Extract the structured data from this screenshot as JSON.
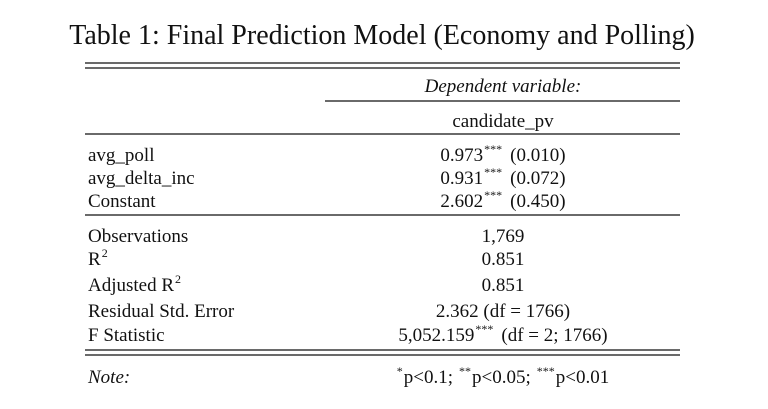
{
  "title": "Table 1: Final Prediction Model (Economy and Polling)",
  "header": {
    "dependent_label": "Dependent variable:",
    "dependent_variable": "candidate_pv"
  },
  "coefficients": [
    {
      "name": "avg_poll",
      "estimate": "0.973",
      "stars": "***",
      "se": "(0.010)"
    },
    {
      "name": "avg_delta_inc",
      "estimate": "0.931",
      "stars": "***",
      "se": "(0.072)"
    },
    {
      "name": "Constant",
      "estimate": "2.602",
      "stars": "***",
      "se": "(0.450)"
    }
  ],
  "statistics": [
    {
      "name": "Observations",
      "value": "1,769"
    },
    {
      "name": "R",
      "name_sup": "2",
      "value": "0.851"
    },
    {
      "name": "Adjusted R",
      "name_sup": "2",
      "value": "0.851"
    },
    {
      "name": "Residual Std. Error",
      "value": "2.362 (df = 1766)"
    },
    {
      "name": "F Statistic",
      "value": "5,052.159",
      "stars": "***",
      "detail": "(df = 2; 1766)"
    }
  ],
  "note": {
    "label": "Note:",
    "items": [
      {
        "stars": "*",
        "text": "p<0.1;"
      },
      {
        "stars": "**",
        "text": "p<0.05;"
      },
      {
        "stars": "***",
        "text": "p<0.01"
      }
    ]
  }
}
